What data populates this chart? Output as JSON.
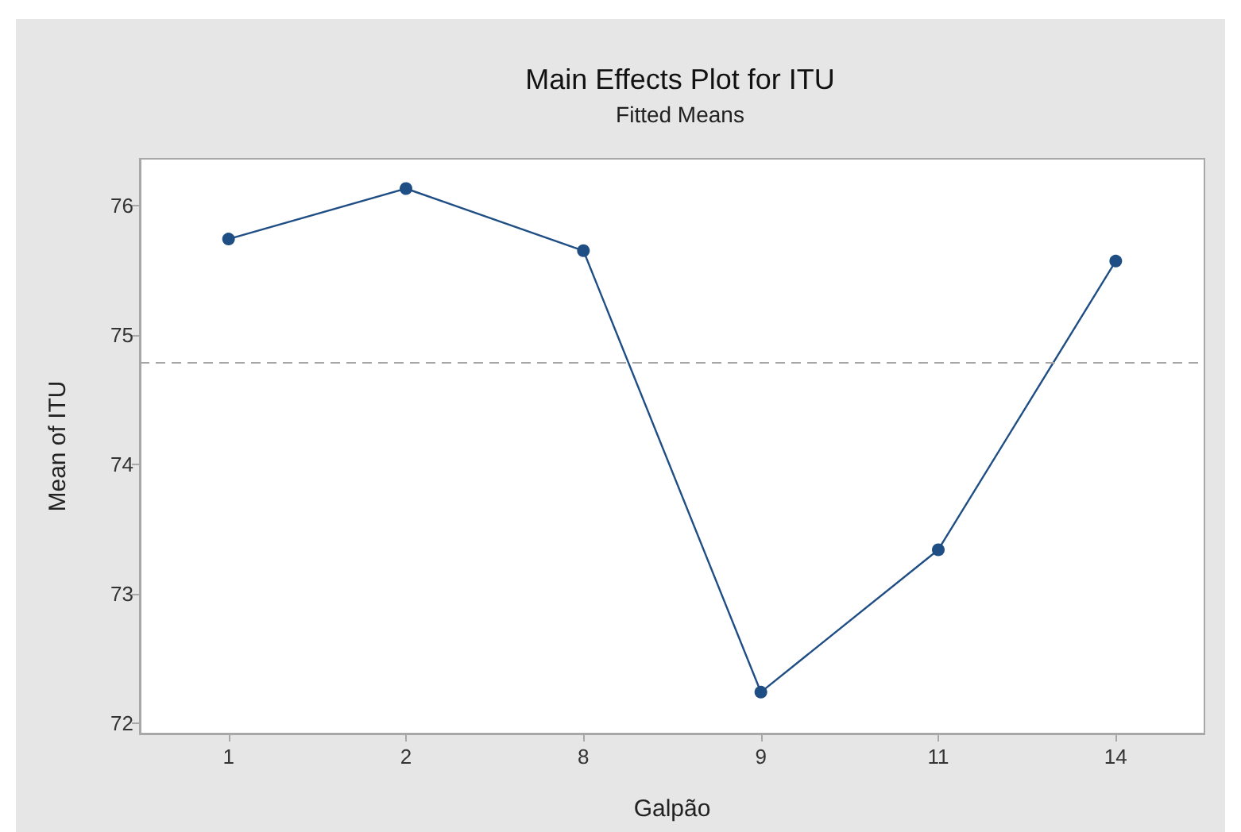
{
  "chart_data": {
    "type": "line",
    "title": "Main Effects Plot for ITU",
    "subtitle": "Fitted Means",
    "xlabel": "Galpão",
    "ylabel": "Mean of ITU",
    "categories": [
      "1",
      "2",
      "8",
      "9",
      "11",
      "14"
    ],
    "series": [
      {
        "color": "#1f4e85",
        "values": [
          75.74,
          76.13,
          75.65,
          72.24,
          73.34,
          75.57
        ]
      }
    ],
    "ylim": [
      71.92,
      76.36
    ],
    "yticks": [
      72,
      73,
      74,
      75,
      76
    ],
    "marker": "circle",
    "line_style": "solid",
    "ref_lines": [
      {
        "axis": "y",
        "value": 74.79,
        "color": "#a6a6a6",
        "line_style": "dashed"
      }
    ]
  }
}
